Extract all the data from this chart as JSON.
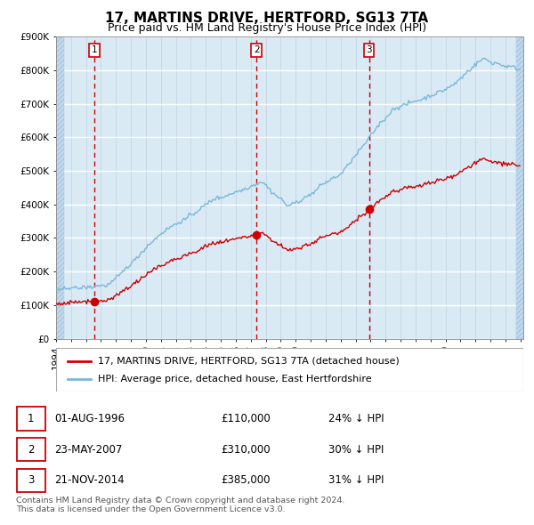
{
  "title": "17, MARTINS DRIVE, HERTFORD, SG13 7TA",
  "subtitle": "Price paid vs. HM Land Registry's House Price Index (HPI)",
  "ylim": [
    0,
    900000
  ],
  "yticks": [
    0,
    100000,
    200000,
    300000,
    400000,
    500000,
    600000,
    700000,
    800000,
    900000
  ],
  "ytick_labels": [
    "£0",
    "£100K",
    "£200K",
    "£300K",
    "£400K",
    "£500K",
    "£600K",
    "£700K",
    "£800K",
    "£900K"
  ],
  "hpi_color": "#7ab8d9",
  "price_color": "#cc0000",
  "vline_color": "#cc0000",
  "plot_bg_color": "#daeaf5",
  "transactions": [
    {
      "date_num": 1996.58,
      "price": 110000,
      "label": "1"
    },
    {
      "date_num": 2007.39,
      "price": 310000,
      "label": "2"
    },
    {
      "date_num": 2014.89,
      "price": 385000,
      "label": "3"
    }
  ],
  "legend_property": "17, MARTINS DRIVE, HERTFORD, SG13 7TA (detached house)",
  "legend_hpi": "HPI: Average price, detached house, East Hertfordshire",
  "table_entries": [
    {
      "num": "1",
      "date": "01-AUG-1996",
      "price": "£110,000",
      "hpi": "24% ↓ HPI"
    },
    {
      "num": "2",
      "date": "23-MAY-2007",
      "price": "£310,000",
      "hpi": "30% ↓ HPI"
    },
    {
      "num": "3",
      "date": "21-NOV-2014",
      "price": "£385,000",
      "hpi": "31% ↓ HPI"
    }
  ],
  "footnote": "Contains HM Land Registry data © Crown copyright and database right 2024.\nThis data is licensed under the Open Government Licence v3.0.",
  "title_fontsize": 11,
  "subtitle_fontsize": 9,
  "tick_fontsize": 7.5,
  "legend_fontsize": 8,
  "table_fontsize": 8.5
}
